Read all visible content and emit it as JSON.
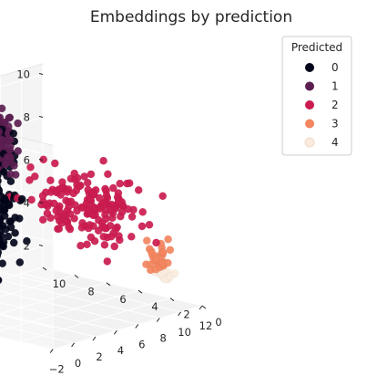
{
  "chart_data": {
    "type": "scatter",
    "projection": "3d",
    "title": "Embeddings by prediction",
    "xlabel": "",
    "ylabel": "",
    "zlabel": "",
    "x_axis_ticks": [
      "0",
      "2",
      "4",
      "6",
      "8",
      "10"
    ],
    "y_axis_ticks": [
      "12",
      "10",
      "8",
      "6",
      "4",
      "2",
      "0",
      "−2"
    ],
    "z_axis_ticks": [
      "2",
      "4",
      "6",
      "8",
      "10"
    ],
    "xlim": [
      0,
      10
    ],
    "ylim": [
      -2,
      12
    ],
    "zlim": [
      1,
      10.5
    ],
    "grid": true,
    "legend": {
      "title": "Predicted",
      "placement": "top-right",
      "entries": [
        {
          "label": "0",
          "color": "#03051a"
        },
        {
          "label": "1",
          "color": "#5c1e51"
        },
        {
          "label": "2",
          "color": "#cb1b4f"
        },
        {
          "label": "3",
          "color": "#f3855f"
        },
        {
          "label": "4",
          "color": "#faebdd"
        }
      ]
    },
    "clusters": [
      {
        "name": "0",
        "color": "#03051a",
        "center": [
          9.2,
          4.8,
          5.5
        ],
        "spread": [
          1.2,
          1.5,
          2.2
        ],
        "approx_count": 480
      },
      {
        "name": "1",
        "color": "#5c1e51",
        "center": [
          8.3,
          5.4,
          8.0
        ],
        "spread": [
          0.8,
          0.9,
          1.0
        ],
        "approx_count": 70
      },
      {
        "name": "2",
        "color": "#cb1b4f",
        "center": [
          4.5,
          7.5,
          5.5
        ],
        "spread": [
          2.2,
          1.6,
          1.2
        ],
        "approx_count": 170
      },
      {
        "name": "3",
        "color": "#f3855f",
        "center": [
          1.3,
          9.8,
          3.3
        ],
        "spread": [
          0.5,
          0.5,
          0.6
        ],
        "approx_count": 30
      },
      {
        "name": "4",
        "color": "#faebdd",
        "center": [
          1.6,
          10.6,
          2.4
        ],
        "spread": [
          0.4,
          0.3,
          0.3
        ],
        "approx_count": 14
      }
    ]
  }
}
